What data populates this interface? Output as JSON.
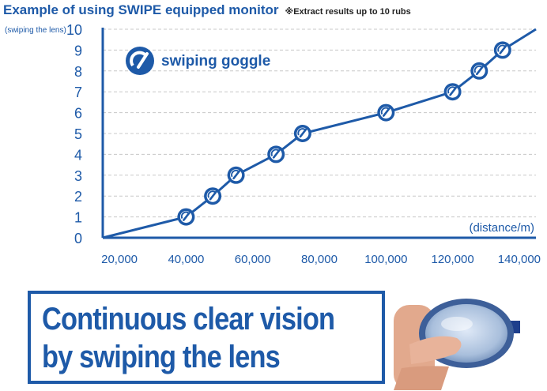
{
  "header": {
    "title": "Example of using SWIPE equipped monitor",
    "note": "※Extract results up to 10 rubs"
  },
  "colors": {
    "accent": "#1e5aa8",
    "grid": "#c8c8c8",
    "text": "#222222"
  },
  "chart_data": {
    "type": "line",
    "title": "Example of using SWIPE equipped monitor",
    "ylabel": "(swiping the lens)",
    "xlabel": "(distance/m)",
    "xlim": [
      15000,
      145000
    ],
    "ylim": [
      0,
      10
    ],
    "x_ticks": [
      "20,000",
      "40,000",
      "60,000",
      "80,000",
      "100,000",
      "120,000",
      "140,000"
    ],
    "x_tick_values": [
      20000,
      40000,
      60000,
      80000,
      100000,
      120000,
      140000
    ],
    "y_ticks": [
      "0",
      "1",
      "2",
      "3",
      "4",
      "5",
      "6",
      "7",
      "8",
      "9",
      "10"
    ],
    "grid": true,
    "legend": "top-left",
    "series": [
      {
        "name": "swiping goggle",
        "x": [
          15000,
          40000,
          48000,
          55000,
          67000,
          75000,
          100000,
          120000,
          128000,
          135000,
          145000
        ],
        "y": [
          0,
          1,
          2,
          3,
          4,
          5,
          6,
          7,
          8,
          9,
          10
        ],
        "markers": [
          false,
          true,
          true,
          true,
          true,
          true,
          true,
          true,
          true,
          true,
          false
        ]
      }
    ]
  },
  "banner": {
    "line1": "Continuous clear vision",
    "line2": "by swiping the lens"
  },
  "photo": {
    "icon": "goggle-lens-icon"
  }
}
